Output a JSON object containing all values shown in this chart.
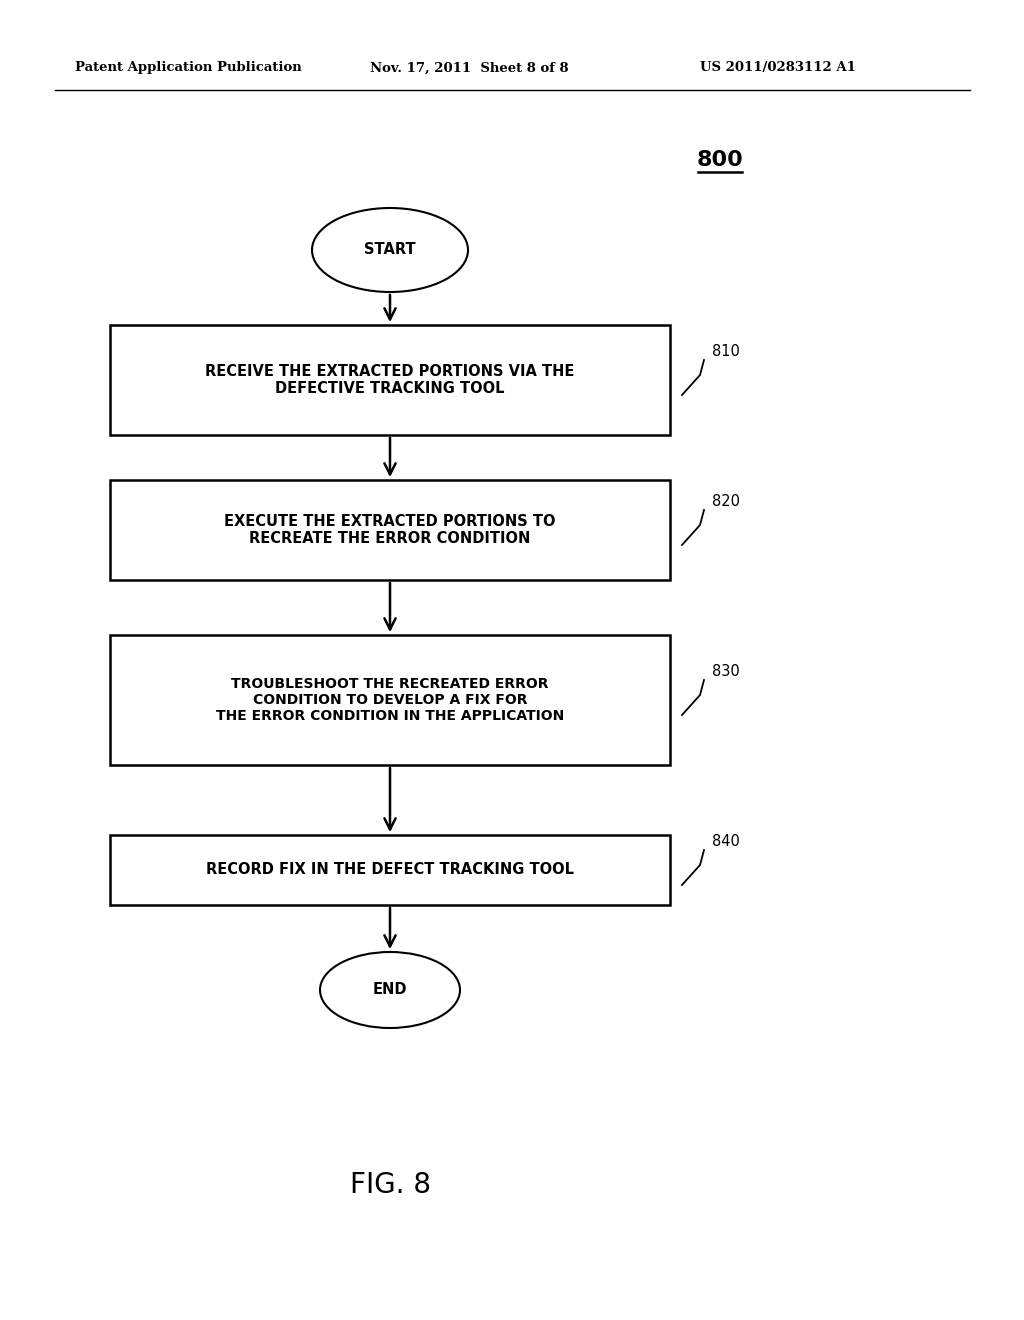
{
  "bg_color": "#ffffff",
  "header_left": "Patent Application Publication",
  "header_center": "Nov. 17, 2011  Sheet 8 of 8",
  "header_right": "US 2011/0283112 A1",
  "fig_label": "800",
  "fig_caption": "FIG. 8",
  "start_label": "START",
  "end_label": "END",
  "box_labels": [
    "RECEIVE THE EXTRACTED PORTIONS VIA THE\nDEFECTIVE TRACKING TOOL",
    "EXECUTE THE EXTRACTED PORTIONS TO\nRECREATE THE ERROR CONDITION",
    "TROUBLESHOOT THE RECREATED ERROR\nCONDITION TO DEVELOP A FIX FOR\nTHE ERROR CONDITION IN THE APPLICATION",
    "RECORD FIX IN THE DEFECT TRACKING TOOL"
  ],
  "box_refs": [
    "810",
    "820",
    "830",
    "840"
  ],
  "line_color": "#000000",
  "text_color": "#000000",
  "font_size_header": 9.5,
  "font_size_box": 10.5,
  "font_size_terminal": 10.5,
  "font_size_ref": 10.5,
  "font_size_caption": 20,
  "font_size_fig_label": 16
}
